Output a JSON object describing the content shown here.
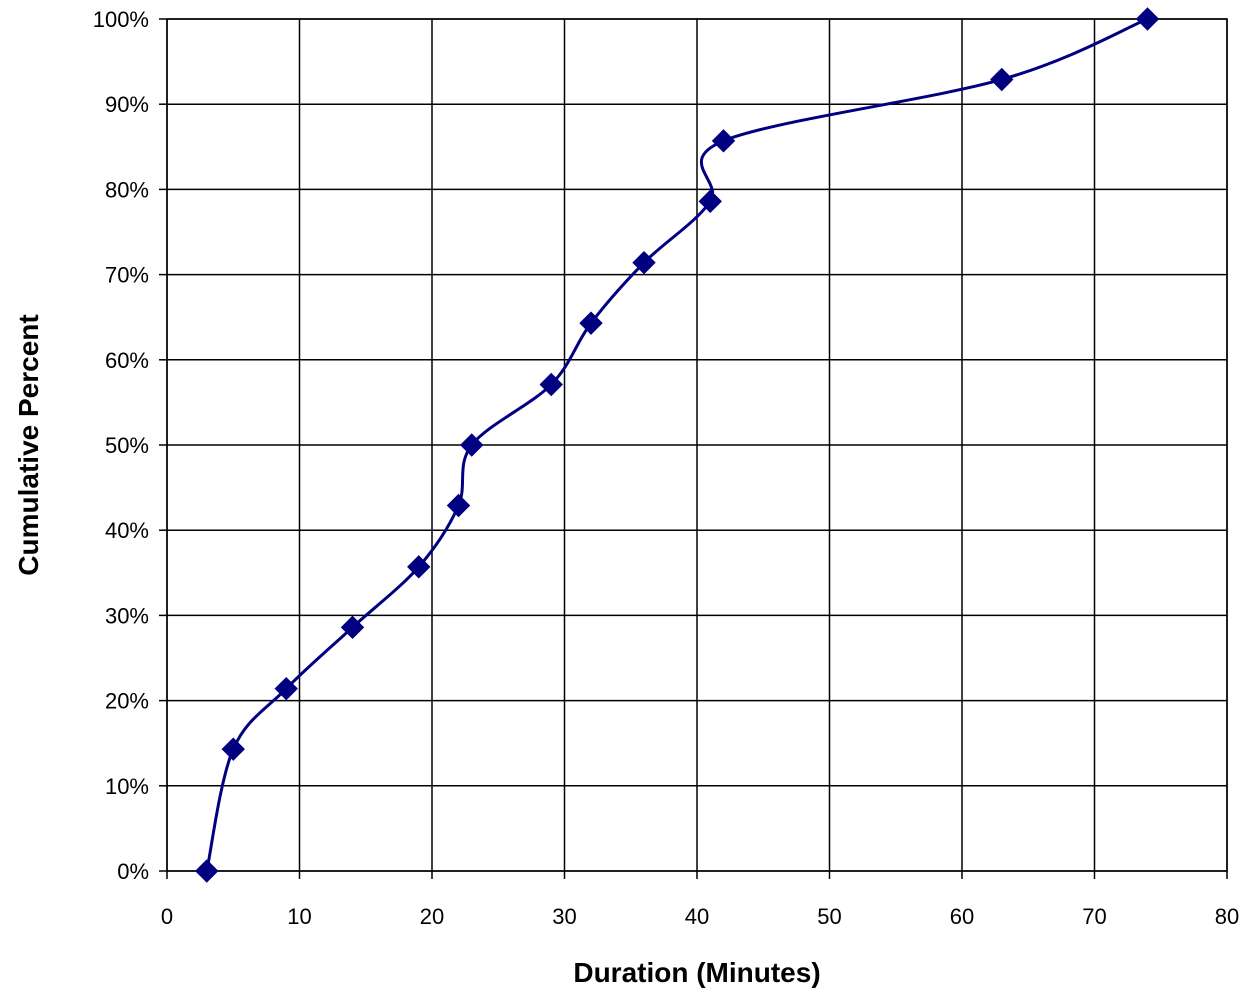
{
  "chart_data": {
    "type": "line",
    "xlabel": "Duration (Minutes)",
    "ylabel": "Cumulative Percent",
    "xlim": [
      0,
      80
    ],
    "ylim": [
      0,
      100
    ],
    "x_ticks": [
      0,
      10,
      20,
      30,
      40,
      50,
      60,
      70,
      80
    ],
    "y_ticks": [
      0,
      10,
      20,
      30,
      40,
      50,
      60,
      70,
      80,
      90,
      100
    ],
    "x_tick_labels": [
      "0",
      "10",
      "20",
      "30",
      "40",
      "50",
      "60",
      "70",
      "80"
    ],
    "y_tick_labels": [
      "0%",
      "10%",
      "20%",
      "30%",
      "40%",
      "50%",
      "60%",
      "70%",
      "80%",
      "90%",
      "100%"
    ],
    "grid": true,
    "legend": "none",
    "smooth": true,
    "marker": "diamond",
    "color": "#000080",
    "series": [
      {
        "x": [
          3,
          5,
          9,
          14,
          19,
          22,
          23,
          29,
          32,
          36,
          41,
          42,
          63,
          74
        ],
        "y": [
          0,
          14.3,
          21.4,
          28.6,
          35.7,
          42.9,
          50.0,
          57.1,
          64.3,
          71.4,
          78.6,
          85.7,
          92.9,
          100
        ]
      }
    ]
  }
}
